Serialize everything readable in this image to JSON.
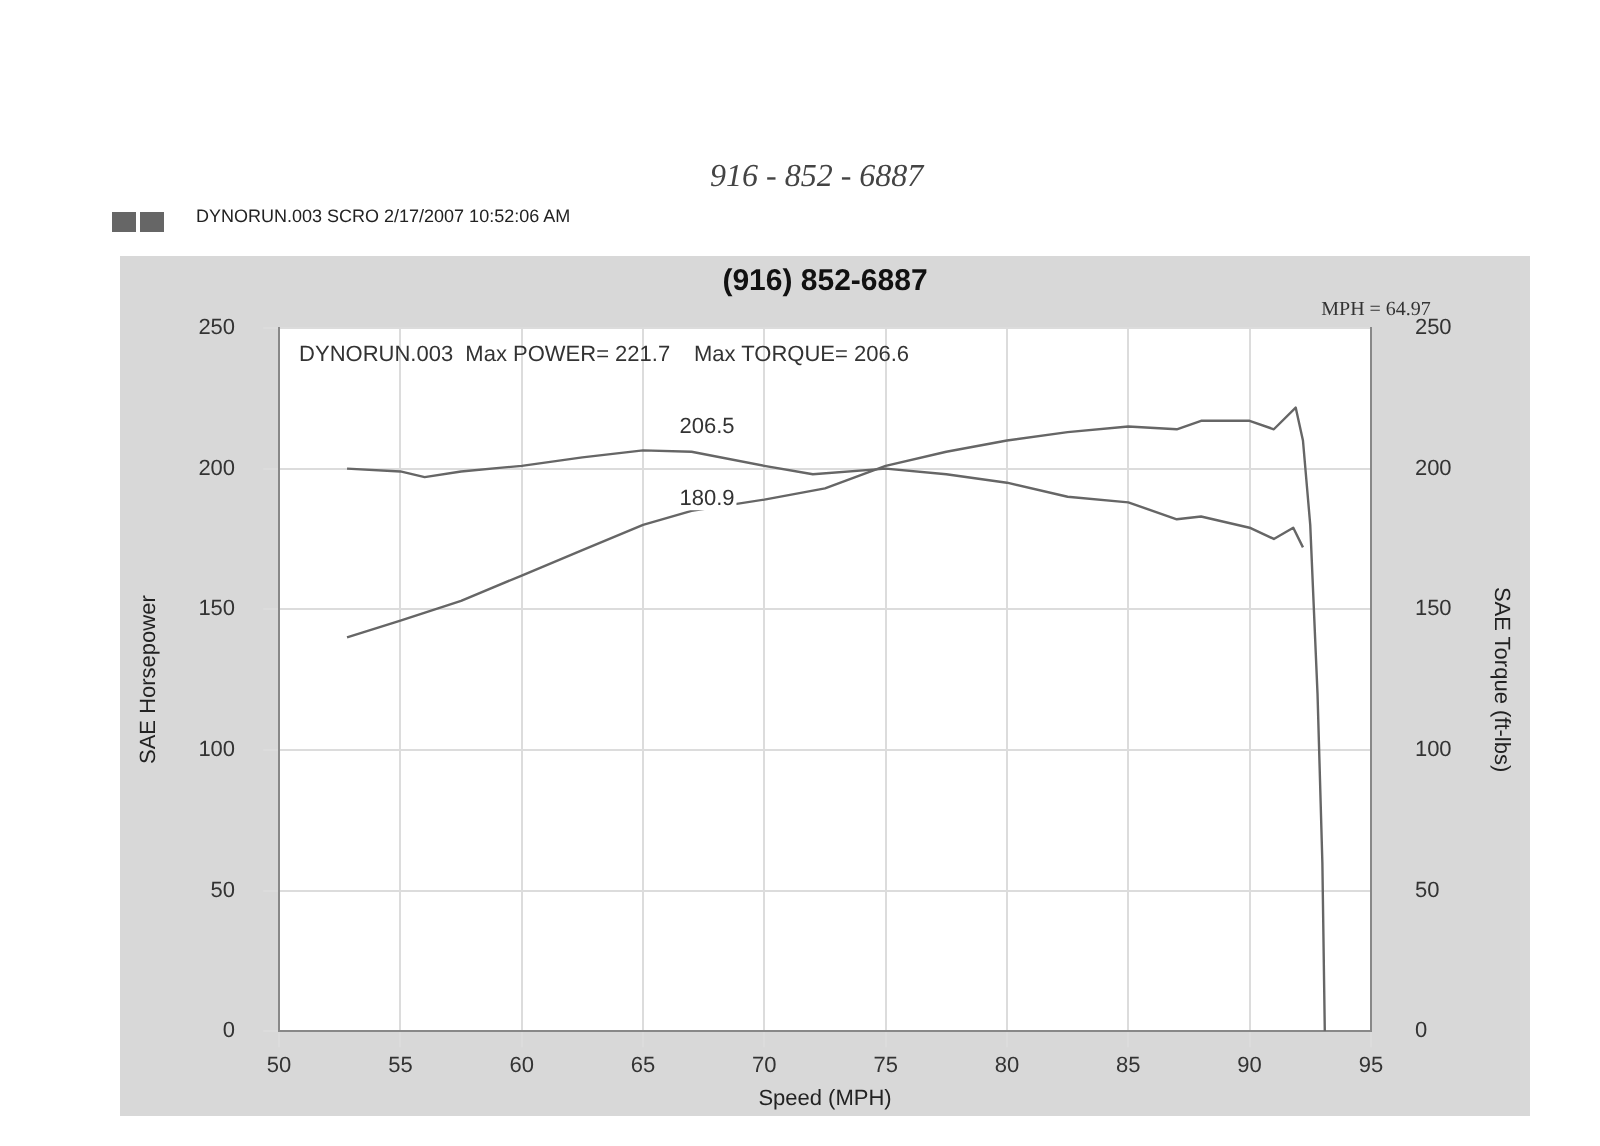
{
  "chart_data": {
    "type": "line",
    "title": "(916) 852-6887",
    "subtitle": "DYNORUN.003  SCRO  2/17/2007 10:52:06 AM",
    "xlabel": "Speed (MPH)",
    "ylabel": "SAE Horsepower",
    "y2label": "SAE Torque (ft-lbs)",
    "annotations": [
      "916 - 852 - 6887",
      "DYNORUN.003  Max POWER= 221.7",
      "Max TORQUE= 206.6",
      "MPH = 64.97",
      {
        "text": "206.5",
        "x": 66.5,
        "y": 206.5
      },
      {
        "text": "180.9",
        "x": 66.5,
        "y": 180.9
      }
    ],
    "xlim": [
      50,
      95
    ],
    "xticks": [
      50,
      55,
      60,
      65,
      70,
      75,
      80,
      85,
      90,
      95
    ],
    "ylim": [
      0,
      250
    ],
    "yticks": [
      0,
      50,
      100,
      150,
      200,
      250
    ],
    "y2lim": [
      0,
      250
    ],
    "y2ticks": [
      0,
      50,
      100,
      150,
      200,
      250
    ],
    "grid": true,
    "legend": false,
    "marker": "none",
    "line_style": "solid",
    "series": [
      {
        "color": "#666666",
        "x": [
          52.8,
          55,
          57.5,
          60,
          62.5,
          65,
          67,
          70,
          72.5,
          75,
          77.5,
          80,
          82.5,
          85,
          87,
          88,
          90,
          91,
          91.9,
          92.2,
          92.5,
          92.8,
          93,
          93.1
        ],
        "values": [
          140,
          146,
          153,
          162,
          171,
          180,
          185,
          189,
          193,
          201,
          206,
          210,
          213,
          215,
          214,
          217,
          217,
          214,
          221.7,
          210,
          180,
          120,
          60,
          0
        ]
      },
      {
        "color": "#666666",
        "axis": "y2",
        "x": [
          52.8,
          55,
          56,
          57.5,
          60,
          62.5,
          65,
          67,
          70,
          72,
          75,
          77.5,
          80,
          82.5,
          85,
          87,
          88,
          90,
          91,
          91.8,
          92.2
        ],
        "values": [
          200,
          199,
          197,
          199,
          201,
          204,
          206.5,
          206,
          201,
          198,
          200,
          198,
          195,
          190,
          188,
          182,
          183,
          179,
          175,
          179,
          172
        ]
      }
    ]
  }
}
